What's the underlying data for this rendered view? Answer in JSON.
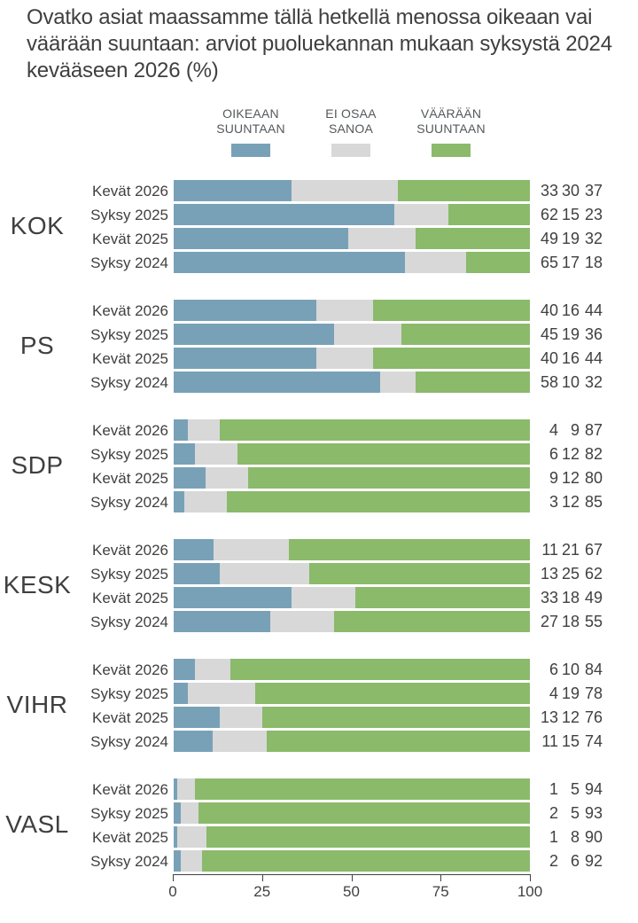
{
  "title": "Ovatko asiat maassamme tällä hetkellä menossa oikeaan vai väärään suuntaan: arviot puoluekannan mukaan syksystä 2024 kevääseen 2026 (%)",
  "colors": {
    "right_direction": "#78a1b8",
    "dont_know": "#d8d8d8",
    "wrong_direction": "#8aba6a",
    "text_dark": "#404040",
    "legend_text": "#54585a"
  },
  "legend": [
    {
      "line1": "OIKEAAN",
      "line2": "SUUNTAAN",
      "color_key": "right_direction"
    },
    {
      "line1": "EI OSAA",
      "line2": "SANOA",
      "color_key": "dont_know"
    },
    {
      "line1": "VÄÄRÄÄN",
      "line2": "SUUNTAAN",
      "color_key": "wrong_direction"
    }
  ],
  "chart_data": {
    "type": "bar",
    "orientation": "horizontal",
    "stacked": true,
    "normalized_to": 100,
    "series_names": [
      "Oikeaan suuntaan",
      "Ei osaa sanoa",
      "Väärään suuntaan"
    ],
    "x_ticks": [
      0,
      25,
      50,
      75,
      100
    ],
    "xlim": [
      0,
      100
    ],
    "groups": [
      {
        "party": "KOK",
        "rows": [
          {
            "label": "Kevät 2026",
            "values": [
              33,
              30,
              37
            ]
          },
          {
            "label": "Syksy 2025",
            "values": [
              62,
              15,
              23
            ]
          },
          {
            "label": "Kevät 2025",
            "values": [
              49,
              19,
              32
            ]
          },
          {
            "label": "Syksy 2024",
            "values": [
              65,
              17,
              18
            ]
          }
        ]
      },
      {
        "party": "PS",
        "rows": [
          {
            "label": "Kevät 2026",
            "values": [
              40,
              16,
              44
            ]
          },
          {
            "label": "Syksy 2025",
            "values": [
              45,
              19,
              36
            ]
          },
          {
            "label": "Kevät 2025",
            "values": [
              40,
              16,
              44
            ]
          },
          {
            "label": "Syksy 2024",
            "values": [
              58,
              10,
              32
            ]
          }
        ]
      },
      {
        "party": "SDP",
        "rows": [
          {
            "label": "Kevät 2026",
            "values": [
              4,
              9,
              87
            ]
          },
          {
            "label": "Syksy 2025",
            "values": [
              6,
              12,
              82
            ]
          },
          {
            "label": "Kevät 2025",
            "values": [
              9,
              12,
              80
            ]
          },
          {
            "label": "Syksy 2024",
            "values": [
              3,
              12,
              85
            ]
          }
        ]
      },
      {
        "party": "KESK",
        "rows": [
          {
            "label": "Kevät 2026",
            "values": [
              11,
              21,
              67
            ]
          },
          {
            "label": "Syksy 2025",
            "values": [
              13,
              25,
              62
            ]
          },
          {
            "label": "Kevät 2025",
            "values": [
              33,
              18,
              49
            ]
          },
          {
            "label": "Syksy 2024",
            "values": [
              27,
              18,
              55
            ]
          }
        ]
      },
      {
        "party": "VIHR",
        "rows": [
          {
            "label": "Kevät 2026",
            "values": [
              6,
              10,
              84
            ]
          },
          {
            "label": "Syksy 2025",
            "values": [
              4,
              19,
              78
            ]
          },
          {
            "label": "Kevät 2025",
            "values": [
              13,
              12,
              76
            ]
          },
          {
            "label": "Syksy 2024",
            "values": [
              11,
              15,
              74
            ]
          }
        ]
      },
      {
        "party": "VASL",
        "rows": [
          {
            "label": "Kevät 2026",
            "values": [
              1,
              5,
              94
            ]
          },
          {
            "label": "Syksy 2025",
            "values": [
              2,
              5,
              93
            ]
          },
          {
            "label": "Kevät 2025",
            "values": [
              1,
              8,
              90
            ]
          },
          {
            "label": "Syksy 2024",
            "values": [
              2,
              6,
              92
            ]
          }
        ]
      }
    ]
  }
}
